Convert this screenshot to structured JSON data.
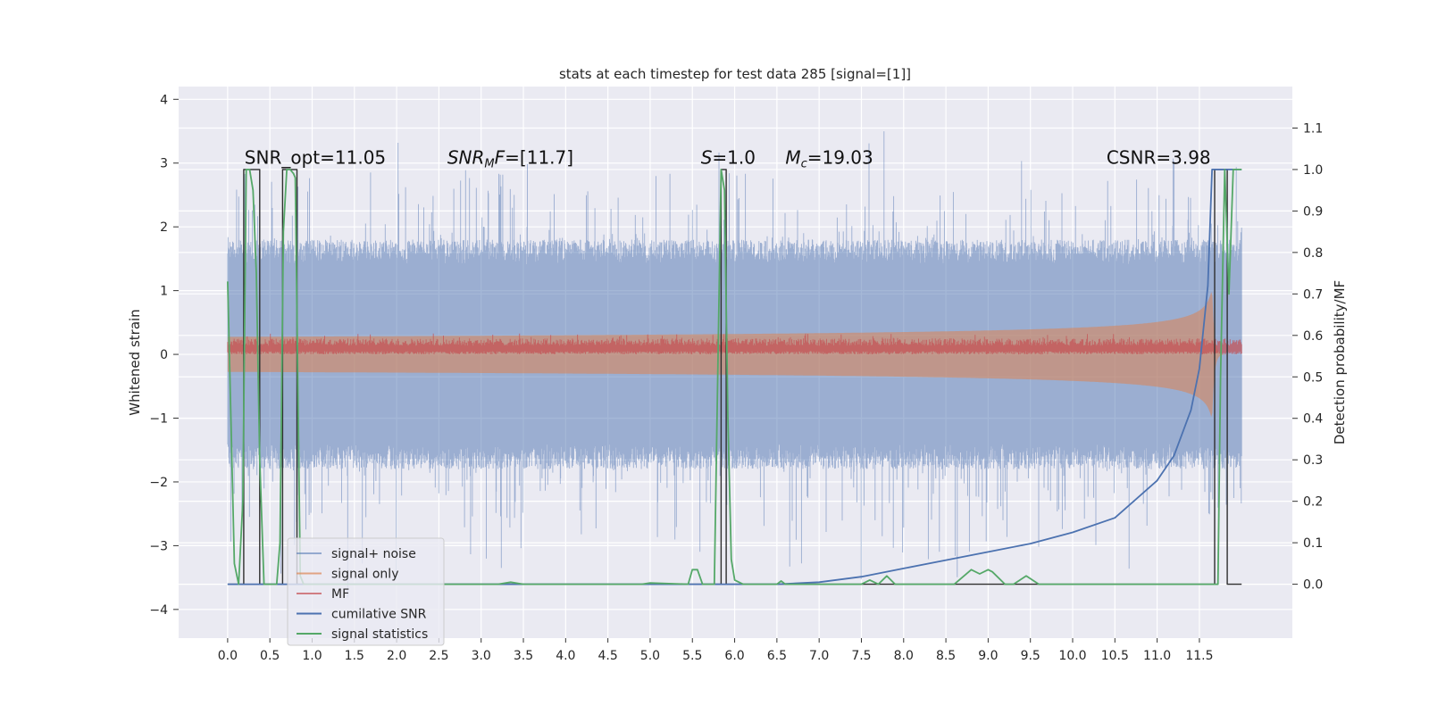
{
  "chart_data": {
    "type": "line",
    "title": "stats at each timestep for test data 285 [signal=[1]]",
    "ylabel_left": "Whitened strain",
    "ylabel_right": "Detection probability/MF",
    "xlim": [
      -0.58,
      12.6
    ],
    "ylim_left": [
      -4.45,
      4.2
    ],
    "ylim_right": [
      -0.13,
      1.2
    ],
    "xticks": [
      0.0,
      0.5,
      1.0,
      1.5,
      2.0,
      2.5,
      3.0,
      3.5,
      4.0,
      4.5,
      5.0,
      5.5,
      6.0,
      6.5,
      7.0,
      7.5,
      8.0,
      8.5,
      9.0,
      9.5,
      10.0,
      10.5,
      11.0,
      11.5
    ],
    "xtick_labels": [
      "0.0",
      "0.5",
      "1.0",
      "1.5",
      "2.0",
      "2.5",
      "3.0",
      "3.5",
      "4.0",
      "4.5",
      "5.0",
      "5.5",
      "6.0",
      "6.5",
      "7.0",
      "7.5",
      "8.0",
      "8.5",
      "9.0",
      "9.5",
      "10.0",
      "10.5",
      "11.0",
      "11.5"
    ],
    "yticks_left": [
      -4,
      -3,
      -2,
      -1,
      0,
      1,
      2,
      3,
      4
    ],
    "ytick_labels_left": [
      "−4",
      "−3",
      "−2",
      "−1",
      "0",
      "1",
      "2",
      "3",
      "4"
    ],
    "yticks_right": [
      0.0,
      0.1,
      0.2,
      0.3,
      0.4,
      0.5,
      0.6,
      0.7,
      0.8,
      0.9,
      1.0,
      1.1
    ],
    "ytick_labels_right": [
      "0.0",
      "0.1",
      "0.2",
      "0.3",
      "0.4",
      "0.5",
      "0.6",
      "0.7",
      "0.8",
      "0.9",
      "1.0",
      "1.1"
    ],
    "grid": true,
    "legend_position": "lower-left",
    "annotations": [
      {
        "text": "SNR_opt=11.05",
        "x": 0.2,
        "y": 3.0
      },
      {
        "text": "SNR_MF=[11.7]",
        "x": 2.6,
        "y": 3.0
      },
      {
        "text": "S=1.0",
        "x": 5.6,
        "y": 3.0
      },
      {
        "text": "M_c=19.03",
        "x": 6.6,
        "y": 3.0
      },
      {
        "text": "CSNR=3.98",
        "x": 10.4,
        "y": 3.0
      }
    ],
    "series": [
      {
        "name": "signal+ noise",
        "axis": "left",
        "color": "#4c72b0",
        "kind": "noise band",
        "x_range": [
          0.0,
          12.0
        ],
        "typical_range": [
          -1.8,
          1.8
        ],
        "spikes_max": 3.85,
        "spikes_min": -4.1
      },
      {
        "name": "signal only",
        "axis": "left",
        "color": "#dd8452",
        "kind": "chirp",
        "x_range": [
          0.0,
          12.0
        ],
        "amplitude_start": 0.05,
        "amplitude_end": 1.05,
        "merger_x": 11.65
      },
      {
        "name": "MF",
        "axis": "left",
        "color": "#c44e52",
        "kind": "band",
        "x_range": [
          0.0,
          12.0
        ],
        "typical_range": [
          0.0,
          0.25
        ]
      },
      {
        "name": "cumilative SNR",
        "axis": "right",
        "color": "#4c72b0",
        "x": [
          0.0,
          6.5,
          7.0,
          7.5,
          8.0,
          8.5,
          9.0,
          9.5,
          10.0,
          10.5,
          11.0,
          11.2,
          11.4,
          11.5,
          11.6,
          11.65,
          11.7,
          12.0
        ],
        "y": [
          0.0,
          0.0,
          0.005,
          0.018,
          0.038,
          0.058,
          0.078,
          0.098,
          0.125,
          0.16,
          0.25,
          0.31,
          0.42,
          0.52,
          0.72,
          1.0,
          1.0,
          1.0
        ]
      },
      {
        "name": "signal statistics",
        "axis": "right",
        "color": "#55a868",
        "x": [
          0.0,
          0.08,
          0.13,
          0.18,
          0.22,
          0.26,
          0.3,
          0.34,
          0.38,
          0.43,
          0.48,
          0.53,
          0.58,
          0.62,
          0.66,
          0.7,
          0.74,
          0.78,
          0.8,
          0.83,
          0.86,
          0.9,
          0.95,
          1.0,
          3.2,
          3.35,
          3.5,
          4.9,
          5.0,
          5.45,
          5.5,
          5.56,
          5.62,
          5.7,
          5.76,
          5.8,
          5.84,
          5.88,
          5.92,
          5.96,
          6.0,
          6.1,
          6.5,
          6.55,
          6.6,
          7.5,
          7.6,
          7.7,
          7.8,
          7.9,
          8.6,
          8.8,
          8.9,
          9.0,
          9.05,
          9.2,
          9.3,
          9.45,
          9.6,
          11.0,
          11.65,
          11.72,
          11.75,
          11.8,
          11.85,
          11.9,
          12.0
        ],
        "y": [
          0.73,
          0.05,
          0.0,
          0.2,
          1.0,
          1.0,
          0.95,
          0.75,
          0.3,
          0.0,
          0.0,
          0.0,
          0.0,
          0.1,
          0.85,
          1.0,
          1.0,
          0.99,
          0.98,
          0.5,
          0.02,
          0.0,
          0.0,
          0.0,
          0.0,
          0.005,
          0.0,
          0.0,
          0.003,
          0.0,
          0.035,
          0.035,
          0.0,
          0.0,
          0.0,
          0.5,
          1.0,
          0.95,
          0.4,
          0.06,
          0.01,
          0.0,
          0.0,
          0.008,
          0.0,
          0.0,
          0.01,
          0.0,
          0.02,
          0.0,
          0.0,
          0.035,
          0.025,
          0.035,
          0.03,
          0.0,
          0.0,
          0.02,
          0.0,
          0.0,
          0.0,
          0.0,
          0.5,
          1.0,
          0.7,
          1.0,
          1.0
        ]
      },
      {
        "name": "",
        "axis": "right",
        "color": "#2f2f2f",
        "kind": "rectangular pulses",
        "x": [
          0.0,
          0.19,
          0.19,
          0.38,
          0.38,
          0.65,
          0.65,
          0.82,
          0.82,
          5.84,
          5.84,
          5.9,
          5.9,
          11.68,
          11.68,
          11.83,
          11.83,
          12.0
        ],
        "y": [
          0.0,
          0.0,
          1.0,
          1.0,
          0.0,
          0.0,
          1.0,
          1.0,
          0.0,
          0.0,
          1.0,
          1.0,
          0.0,
          0.0,
          1.0,
          1.0,
          0.0,
          0.0
        ]
      }
    ]
  },
  "legend": [
    {
      "label": "signal+ noise",
      "color": "#4c72b0",
      "alpha": 0.55
    },
    {
      "label": "signal only",
      "color": "#dd8452",
      "alpha": 0.7
    },
    {
      "label": "MF",
      "color": "#c44e52",
      "alpha": 0.7
    },
    {
      "label": "cumilative SNR",
      "color": "#4c72b0",
      "alpha": 1
    },
    {
      "label": "signal statistics",
      "color": "#55a868",
      "alpha": 1
    }
  ],
  "colors": {
    "plot_background": "#eaeaf2",
    "grid": "#ffffff"
  }
}
